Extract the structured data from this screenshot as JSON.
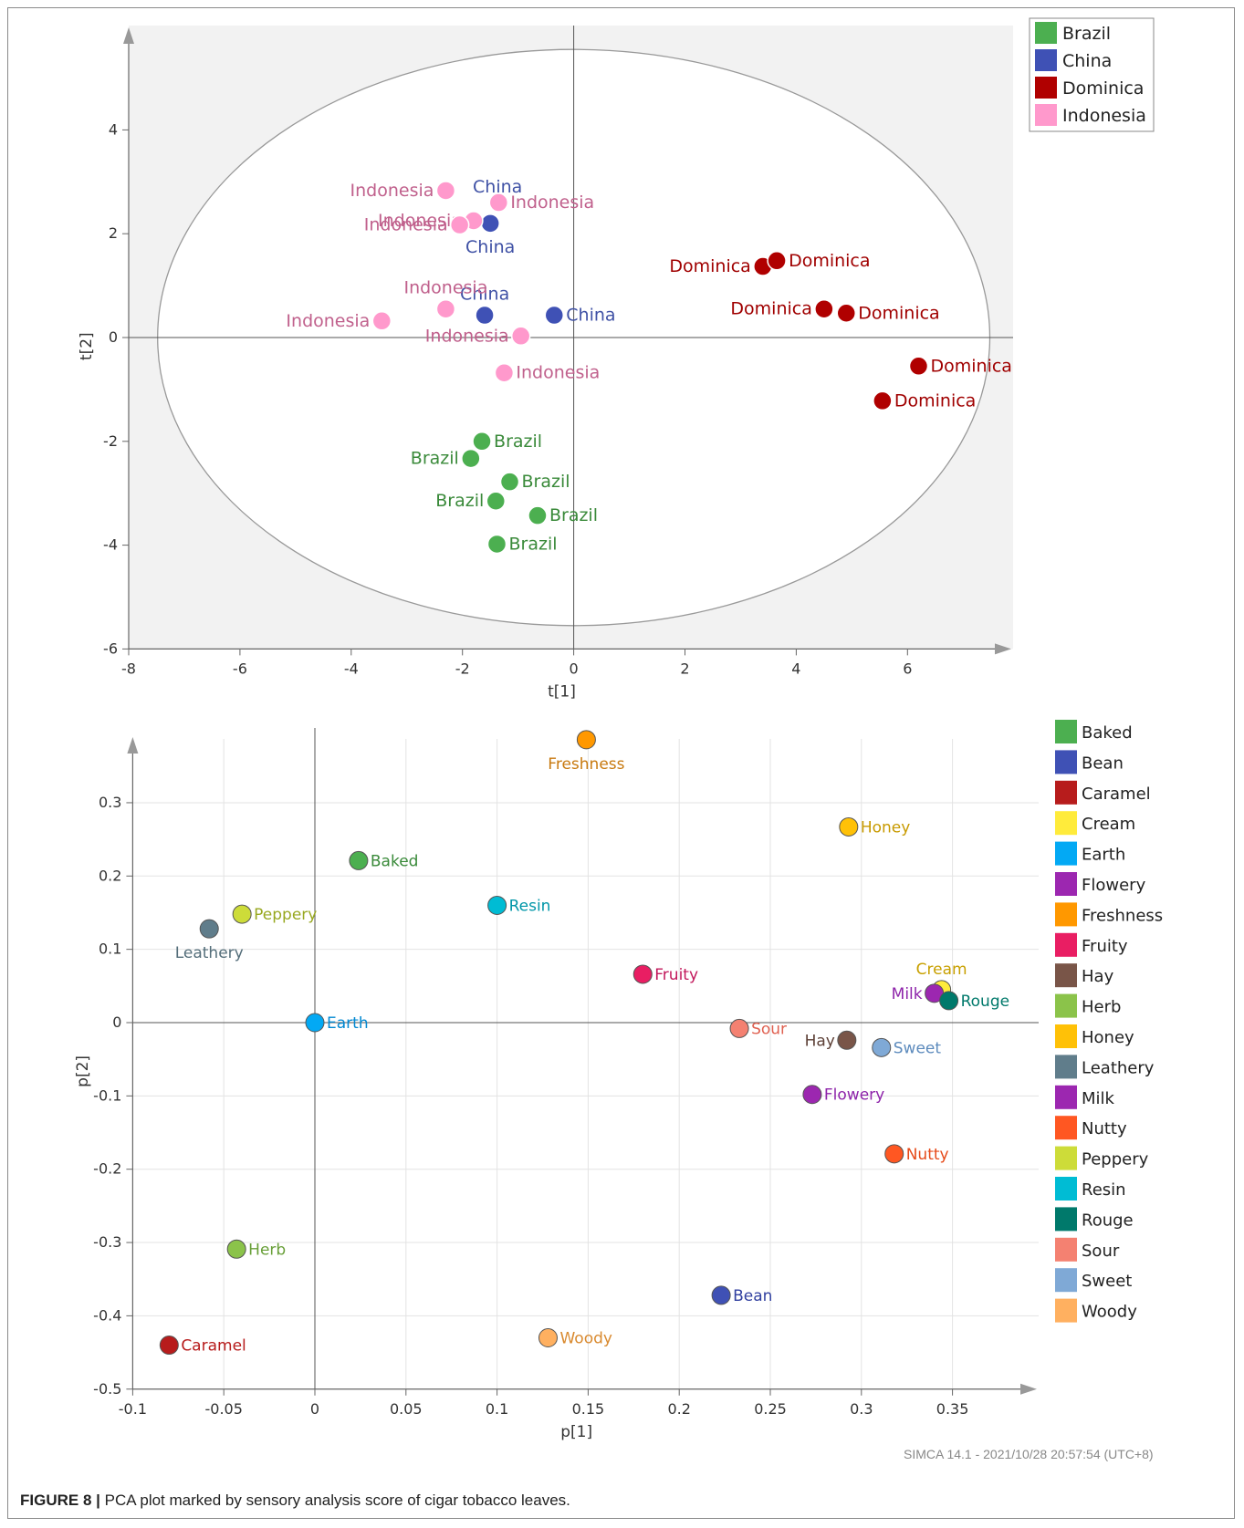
{
  "caption": {
    "label": "FIGURE 8 |",
    "text": "PCA plot marked by sensory analysis score of cigar tobacco leaves."
  },
  "footer": {
    "stamp": "SIMCA 14.1 - 2021/10/28 20:57:54 (UTC+8)"
  },
  "chart_data": [
    {
      "type": "scatter",
      "title": "",
      "xlabel": "t[1]",
      "ylabel": "t[2]",
      "xlim": [
        -8,
        8
      ],
      "ylim": [
        -6,
        6
      ],
      "xticks": [
        -8,
        -6,
        -4,
        -2,
        0,
        2,
        4,
        6
      ],
      "yticks": [
        -6,
        -4,
        -2,
        0,
        2,
        4
      ],
      "ellipse": {
        "rx": 8.0,
        "ry": 5.55
      },
      "legend_position": "top-right",
      "legend": [
        {
          "name": "Brazil",
          "color": "#4caf50"
        },
        {
          "name": "China",
          "color": "#3f51b5"
        },
        {
          "name": "Dominica",
          "color": "#b00000"
        },
        {
          "name": "Indonesia",
          "color": "#ff99cc"
        }
      ],
      "series": [
        {
          "name": "Brazil",
          "color": "#4caf50",
          "label_color": "#3a8a3a",
          "points": [
            {
              "x": -1.65,
              "y": -2.0,
              "label": "Brazil",
              "side": "right"
            },
            {
              "x": -1.85,
              "y": -2.33,
              "label": "Brazil",
              "side": "left"
            },
            {
              "x": -1.15,
              "y": -2.78,
              "label": "Brazil",
              "side": "right"
            },
            {
              "x": -1.4,
              "y": -3.15,
              "label": "Brazil",
              "side": "left"
            },
            {
              "x": -0.65,
              "y": -3.43,
              "label": "Brazil",
              "side": "right"
            },
            {
              "x": -1.38,
              "y": -3.98,
              "label": "Brazil",
              "side": "right"
            }
          ]
        },
        {
          "name": "China",
          "color": "#3f51b5",
          "label_color": "#3f51a5",
          "points": [
            {
              "x": -1.5,
              "y": 2.2,
              "label": "China",
              "side": "above-left"
            },
            {
              "x": -1.5,
              "y": 2.2,
              "label": "China",
              "side": "below"
            },
            {
              "x": -1.6,
              "y": 0.43,
              "label": "China",
              "side": "above"
            },
            {
              "x": -0.35,
              "y": 0.43,
              "label": "China",
              "side": "right"
            }
          ]
        },
        {
          "name": "Dominica",
          "color": "#b00000",
          "label_color": "#a00000",
          "points": [
            {
              "x": 3.4,
              "y": 1.37,
              "label": "Dominica",
              "side": "left"
            },
            {
              "x": 3.65,
              "y": 1.48,
              "label": "Dominica",
              "side": "right"
            },
            {
              "x": 4.5,
              "y": 0.55,
              "label": "Dominica",
              "side": "left"
            },
            {
              "x": 4.9,
              "y": 0.47,
              "label": "Dominica",
              "side": "right"
            },
            {
              "x": 6.2,
              "y": -0.55,
              "label": "Dominica",
              "side": "right"
            },
            {
              "x": 5.55,
              "y": -1.22,
              "label": "Dominica",
              "side": "right"
            }
          ]
        },
        {
          "name": "Indonesia",
          "color": "#ff99cc",
          "label_color": "#c0608c",
          "points": [
            {
              "x": -2.3,
              "y": 2.83,
              "label": "Indonesia",
              "side": "left"
            },
            {
              "x": -1.35,
              "y": 2.6,
              "label": "Indonesia",
              "side": "right"
            },
            {
              "x": -1.8,
              "y": 2.25,
              "label": "Indonesia",
              "side": "left"
            },
            {
              "x": -2.05,
              "y": 2.17,
              "label": "Indonesia",
              "side": "left"
            },
            {
              "x": -2.3,
              "y": 0.55,
              "label": "Indonesia",
              "side": "above"
            },
            {
              "x": -3.45,
              "y": 0.32,
              "label": "Indonesia",
              "side": "left"
            },
            {
              "x": -0.95,
              "y": 0.03,
              "label": "Indonesia",
              "side": "left"
            },
            {
              "x": -1.25,
              "y": -0.68,
              "label": "Indonesia",
              "side": "right"
            }
          ]
        }
      ]
    },
    {
      "type": "scatter",
      "title": "",
      "xlabel": "p[1]",
      "ylabel": "p[2]",
      "xlim": [
        -0.1,
        0.37
      ],
      "ylim": [
        -0.5,
        0.37
      ],
      "xticks": [
        -0.1,
        -0.05,
        0,
        0.05,
        0.1,
        0.15,
        0.2,
        0.25,
        0.3,
        0.35
      ],
      "xtick_labels": [
        "-0.1",
        "-0.05",
        "0",
        "0.05",
        "0.1",
        "0.15",
        "0.2",
        "0.25",
        "0.3",
        "0.35"
      ],
      "yticks": [
        -0.5,
        -0.4,
        -0.3,
        -0.2,
        -0.1,
        0,
        0.1,
        0.2,
        0.3
      ],
      "ytick_labels": [
        "-0.5",
        "-0.4",
        "-0.3",
        "-0.2",
        "-0.1",
        "0",
        "0.1",
        "0.2",
        "0.3"
      ],
      "legend_position": "right",
      "legend": [
        {
          "name": "Baked",
          "color": "#4caf50"
        },
        {
          "name": "Bean",
          "color": "#3f51b5"
        },
        {
          "name": "Caramel",
          "color": "#b71c1c"
        },
        {
          "name": "Cream",
          "color": "#ffeb3b"
        },
        {
          "name": "Earth",
          "color": "#03a9f4"
        },
        {
          "name": "Flowery",
          "color": "#9c27b0"
        },
        {
          "name": "Freshness",
          "color": "#ff9800"
        },
        {
          "name": "Fruity",
          "color": "#e91e63"
        },
        {
          "name": "Hay",
          "color": "#795548"
        },
        {
          "name": "Herb",
          "color": "#8bc34a"
        },
        {
          "name": "Honey",
          "color": "#ffc107"
        },
        {
          "name": "Leathery",
          "color": "#607d8b"
        },
        {
          "name": "Milk",
          "color": "#9c27b0"
        },
        {
          "name": "Nutty",
          "color": "#ff5722"
        },
        {
          "name": "Peppery",
          "color": "#cddc39"
        },
        {
          "name": "Resin",
          "color": "#00bcd4"
        },
        {
          "name": "Rouge",
          "color": "#00796b"
        },
        {
          "name": "Sour",
          "color": "#f48171"
        },
        {
          "name": "Sweet",
          "color": "#7fa9d6"
        },
        {
          "name": "Woody",
          "color": "#ffb060"
        }
      ],
      "points": [
        {
          "name": "Freshness",
          "x": 0.149,
          "y": 0.386,
          "color": "#ff9800",
          "label_color": "#c87a10",
          "side": "below"
        },
        {
          "name": "Honey",
          "x": 0.293,
          "y": 0.267,
          "color": "#ffc107",
          "label_color": "#c89a00",
          "side": "right"
        },
        {
          "name": "Baked",
          "x": 0.024,
          "y": 0.221,
          "color": "#4caf50",
          "label_color": "#3a8a3a",
          "side": "right"
        },
        {
          "name": "Resin",
          "x": 0.1,
          "y": 0.16,
          "color": "#00bcd4",
          "label_color": "#0096a8",
          "side": "right"
        },
        {
          "name": "Peppery",
          "x": -0.04,
          "y": 0.148,
          "color": "#cddc39",
          "label_color": "#98a820",
          "side": "right"
        },
        {
          "name": "Leathery",
          "x": -0.058,
          "y": 0.128,
          "color": "#607d8b",
          "label_color": "#546e7a",
          "side": "below"
        },
        {
          "name": "Fruity",
          "x": 0.18,
          "y": 0.066,
          "color": "#e91e63",
          "label_color": "#c2185b",
          "side": "right"
        },
        {
          "name": "Cream",
          "x": 0.344,
          "y": 0.045,
          "color": "#ffeb3b",
          "label_color": "#c8a000",
          "side": "above"
        },
        {
          "name": "Milk",
          "x": 0.34,
          "y": 0.04,
          "color": "#9c27b0",
          "label_color": "#8e24aa",
          "side": "left"
        },
        {
          "name": "Rouge",
          "x": 0.348,
          "y": 0.03,
          "color": "#00796b",
          "label_color": "#00796b",
          "side": "right"
        },
        {
          "name": "Earth",
          "x": 0.0,
          "y": 0.0,
          "color": "#03a9f4",
          "label_color": "#0288d1",
          "side": "right"
        },
        {
          "name": "Sour",
          "x": 0.233,
          "y": -0.008,
          "color": "#f48171",
          "label_color": "#e06050",
          "side": "right"
        },
        {
          "name": "Hay",
          "x": 0.292,
          "y": -0.024,
          "color": "#795548",
          "label_color": "#5d4037",
          "side": "left"
        },
        {
          "name": "Sweet",
          "x": 0.311,
          "y": -0.034,
          "color": "#7fa9d6",
          "label_color": "#5d8bbd",
          "side": "right"
        },
        {
          "name": "Flowery",
          "x": 0.273,
          "y": -0.098,
          "color": "#9c27b0",
          "label_color": "#8e24aa",
          "side": "right"
        },
        {
          "name": "Nutty",
          "x": 0.318,
          "y": -0.179,
          "color": "#ff5722",
          "label_color": "#e64a19",
          "side": "right"
        },
        {
          "name": "Herb",
          "x": -0.043,
          "y": -0.309,
          "color": "#8bc34a",
          "label_color": "#689f38",
          "side": "right"
        },
        {
          "name": "Bean",
          "x": 0.223,
          "y": -0.372,
          "color": "#3f51b5",
          "label_color": "#303f9f",
          "side": "right"
        },
        {
          "name": "Woody",
          "x": 0.128,
          "y": -0.43,
          "color": "#ffb060",
          "label_color": "#d98a30",
          "side": "right"
        },
        {
          "name": "Caramel",
          "x": -0.08,
          "y": -0.44,
          "color": "#b71c1c",
          "label_color": "#b71c1c",
          "side": "right"
        }
      ]
    }
  ]
}
